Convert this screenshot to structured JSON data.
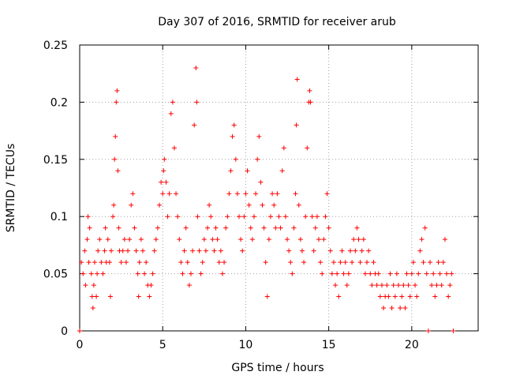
{
  "chart_data": {
    "type": "scatter",
    "title": "Day 307 of 2016, SRMTID for receiver arub",
    "xlabel": "GPS time / hours",
    "ylabel": "SRMTID / TECUs",
    "xlim": [
      0,
      24
    ],
    "ylim": [
      0,
      0.25
    ],
    "x_ticks": [
      0,
      5,
      10,
      15,
      20
    ],
    "y_ticks": [
      0,
      0.05,
      0.1,
      0.15,
      0.2,
      0.25
    ],
    "x_tick_labels": [
      "0",
      "5",
      "10",
      "15",
      "20"
    ],
    "y_tick_labels": [
      "0",
      "0.05",
      "0.1",
      "0.15",
      "0.2",
      "0.25"
    ],
    "grid": true,
    "marker": "+",
    "color": "#ff0000",
    "series": [
      {
        "name": "arub",
        "points": [
          [
            0.0,
            0.0
          ],
          [
            0.1,
            0.06
          ],
          [
            0.2,
            0.05
          ],
          [
            0.3,
            0.07
          ],
          [
            0.35,
            0.04
          ],
          [
            0.45,
            0.08
          ],
          [
            0.5,
            0.1
          ],
          [
            0.55,
            0.06
          ],
          [
            0.6,
            0.09
          ],
          [
            0.7,
            0.05
          ],
          [
            0.75,
            0.03
          ],
          [
            0.8,
            0.02
          ],
          [
            0.85,
            0.04
          ],
          [
            0.9,
            0.06
          ],
          [
            1.0,
            0.03
          ],
          [
            1.05,
            0.05
          ],
          [
            1.1,
            0.07
          ],
          [
            1.2,
            0.08
          ],
          [
            1.3,
            0.06
          ],
          [
            1.4,
            0.05
          ],
          [
            1.5,
            0.07
          ],
          [
            1.55,
            0.09
          ],
          [
            1.6,
            0.06
          ],
          [
            1.7,
            0.08
          ],
          [
            1.8,
            0.06
          ],
          [
            1.85,
            0.03
          ],
          [
            1.9,
            0.07
          ],
          [
            2.0,
            0.1
          ],
          [
            2.05,
            0.11
          ],
          [
            2.1,
            0.15
          ],
          [
            2.15,
            0.17
          ],
          [
            2.2,
            0.2
          ],
          [
            2.25,
            0.21
          ],
          [
            2.3,
            0.14
          ],
          [
            2.35,
            0.09
          ],
          [
            2.4,
            0.07
          ],
          [
            2.5,
            0.06
          ],
          [
            2.6,
            0.07
          ],
          [
            2.7,
            0.08
          ],
          [
            2.8,
            0.06
          ],
          [
            2.9,
            0.07
          ],
          [
            3.0,
            0.08
          ],
          [
            3.1,
            0.11
          ],
          [
            3.2,
            0.12
          ],
          [
            3.3,
            0.09
          ],
          [
            3.4,
            0.07
          ],
          [
            3.5,
            0.05
          ],
          [
            3.55,
            0.03
          ],
          [
            3.6,
            0.06
          ],
          [
            3.7,
            0.08
          ],
          [
            3.8,
            0.07
          ],
          [
            3.9,
            0.05
          ],
          [
            4.0,
            0.06
          ],
          [
            4.1,
            0.04
          ],
          [
            4.2,
            0.03
          ],
          [
            4.3,
            0.04
          ],
          [
            4.4,
            0.05
          ],
          [
            4.5,
            0.07
          ],
          [
            4.6,
            0.08
          ],
          [
            4.7,
            0.09
          ],
          [
            4.8,
            0.11
          ],
          [
            4.9,
            0.13
          ],
          [
            5.0,
            0.12
          ],
          [
            5.05,
            0.14
          ],
          [
            5.1,
            0.15
          ],
          [
            5.2,
            0.13
          ],
          [
            5.3,
            0.1
          ],
          [
            5.4,
            0.12
          ],
          [
            5.5,
            0.19
          ],
          [
            5.6,
            0.2
          ],
          [
            5.7,
            0.16
          ],
          [
            5.8,
            0.12
          ],
          [
            5.9,
            0.1
          ],
          [
            6.0,
            0.08
          ],
          [
            6.1,
            0.06
          ],
          [
            6.2,
            0.05
          ],
          [
            6.3,
            0.07
          ],
          [
            6.4,
            0.09
          ],
          [
            6.5,
            0.06
          ],
          [
            6.6,
            0.04
          ],
          [
            6.7,
            0.05
          ],
          [
            6.8,
            0.07
          ],
          [
            6.9,
            0.18
          ],
          [
            7.0,
            0.23
          ],
          [
            7.05,
            0.2
          ],
          [
            7.1,
            0.1
          ],
          [
            7.2,
            0.07
          ],
          [
            7.3,
            0.05
          ],
          [
            7.4,
            0.06
          ],
          [
            7.5,
            0.08
          ],
          [
            7.6,
            0.07
          ],
          [
            7.7,
            0.09
          ],
          [
            7.8,
            0.11
          ],
          [
            7.9,
            0.1
          ],
          [
            8.0,
            0.08
          ],
          [
            8.1,
            0.07
          ],
          [
            8.2,
            0.09
          ],
          [
            8.3,
            0.08
          ],
          [
            8.4,
            0.06
          ],
          [
            8.5,
            0.07
          ],
          [
            8.6,
            0.05
          ],
          [
            8.7,
            0.06
          ],
          [
            8.8,
            0.09
          ],
          [
            8.9,
            0.1
          ],
          [
            9.0,
            0.12
          ],
          [
            9.1,
            0.14
          ],
          [
            9.2,
            0.17
          ],
          [
            9.3,
            0.18
          ],
          [
            9.4,
            0.15
          ],
          [
            9.5,
            0.12
          ],
          [
            9.6,
            0.1
          ],
          [
            9.7,
            0.08
          ],
          [
            9.8,
            0.07
          ],
          [
            9.9,
            0.1
          ],
          [
            10.0,
            0.12
          ],
          [
            10.1,
            0.14
          ],
          [
            10.2,
            0.11
          ],
          [
            10.3,
            0.09
          ],
          [
            10.4,
            0.08
          ],
          [
            10.5,
            0.1
          ],
          [
            10.6,
            0.12
          ],
          [
            10.7,
            0.15
          ],
          [
            10.8,
            0.17
          ],
          [
            10.9,
            0.13
          ],
          [
            11.0,
            0.11
          ],
          [
            11.1,
            0.09
          ],
          [
            11.2,
            0.06
          ],
          [
            11.3,
            0.03
          ],
          [
            11.4,
            0.08
          ],
          [
            11.5,
            0.1
          ],
          [
            11.6,
            0.12
          ],
          [
            11.7,
            0.11
          ],
          [
            11.8,
            0.09
          ],
          [
            11.9,
            0.12
          ],
          [
            12.0,
            0.1
          ],
          [
            12.1,
            0.09
          ],
          [
            12.2,
            0.14
          ],
          [
            12.3,
            0.16
          ],
          [
            12.4,
            0.1
          ],
          [
            12.5,
            0.08
          ],
          [
            12.6,
            0.07
          ],
          [
            12.7,
            0.06
          ],
          [
            12.8,
            0.05
          ],
          [
            12.9,
            0.09
          ],
          [
            13.0,
            0.12
          ],
          [
            13.05,
            0.18
          ],
          [
            13.1,
            0.22
          ],
          [
            13.2,
            0.11
          ],
          [
            13.3,
            0.08
          ],
          [
            13.4,
            0.07
          ],
          [
            13.5,
            0.06
          ],
          [
            13.6,
            0.1
          ],
          [
            13.7,
            0.16
          ],
          [
            13.8,
            0.2
          ],
          [
            13.85,
            0.21
          ],
          [
            13.9,
            0.2
          ],
          [
            14.0,
            0.1
          ],
          [
            14.1,
            0.07
          ],
          [
            14.2,
            0.09
          ],
          [
            14.3,
            0.1
          ],
          [
            14.4,
            0.08
          ],
          [
            14.5,
            0.06
          ],
          [
            14.6,
            0.05
          ],
          [
            14.7,
            0.08
          ],
          [
            14.8,
            0.1
          ],
          [
            14.9,
            0.12
          ],
          [
            15.0,
            0.09
          ],
          [
            15.1,
            0.07
          ],
          [
            15.2,
            0.05
          ],
          [
            15.3,
            0.06
          ],
          [
            15.4,
            0.04
          ],
          [
            15.5,
            0.05
          ],
          [
            15.6,
            0.03
          ],
          [
            15.7,
            0.06
          ],
          [
            15.8,
            0.07
          ],
          [
            15.9,
            0.05
          ],
          [
            16.0,
            0.06
          ],
          [
            16.1,
            0.04
          ],
          [
            16.2,
            0.05
          ],
          [
            16.3,
            0.07
          ],
          [
            16.4,
            0.06
          ],
          [
            16.5,
            0.08
          ],
          [
            16.6,
            0.07
          ],
          [
            16.7,
            0.09
          ],
          [
            16.8,
            0.08
          ],
          [
            16.9,
            0.06
          ],
          [
            17.0,
            0.07
          ],
          [
            17.1,
            0.08
          ],
          [
            17.2,
            0.05
          ],
          [
            17.3,
            0.06
          ],
          [
            17.4,
            0.07
          ],
          [
            17.5,
            0.05
          ],
          [
            17.6,
            0.04
          ],
          [
            17.7,
            0.06
          ],
          [
            17.8,
            0.05
          ],
          [
            17.9,
            0.04
          ],
          [
            18.0,
            0.05
          ],
          [
            18.1,
            0.03
          ],
          [
            18.2,
            0.04
          ],
          [
            18.3,
            0.02
          ],
          [
            18.4,
            0.03
          ],
          [
            18.5,
            0.04
          ],
          [
            18.6,
            0.03
          ],
          [
            18.7,
            0.05
          ],
          [
            18.8,
            0.02
          ],
          [
            18.9,
            0.04
          ],
          [
            19.0,
            0.03
          ],
          [
            19.1,
            0.05
          ],
          [
            19.2,
            0.04
          ],
          [
            19.3,
            0.02
          ],
          [
            19.4,
            0.03
          ],
          [
            19.5,
            0.04
          ],
          [
            19.6,
            0.02
          ],
          [
            19.7,
            0.05
          ],
          [
            19.8,
            0.04
          ],
          [
            19.9,
            0.03
          ],
          [
            20.0,
            0.05
          ],
          [
            20.1,
            0.06
          ],
          [
            20.2,
            0.04
          ],
          [
            20.3,
            0.03
          ],
          [
            20.4,
            0.05
          ],
          [
            20.5,
            0.07
          ],
          [
            20.6,
            0.08
          ],
          [
            20.7,
            0.06
          ],
          [
            20.8,
            0.09
          ],
          [
            20.9,
            0.05
          ],
          [
            21.0,
            0.0
          ],
          [
            21.1,
            0.06
          ],
          [
            21.2,
            0.04
          ],
          [
            21.3,
            0.05
          ],
          [
            21.4,
            0.03
          ],
          [
            21.5,
            0.04
          ],
          [
            21.6,
            0.06
          ],
          [
            21.7,
            0.05
          ],
          [
            21.8,
            0.04
          ],
          [
            21.9,
            0.06
          ],
          [
            22.0,
            0.08
          ],
          [
            22.1,
            0.05
          ],
          [
            22.2,
            0.03
          ],
          [
            22.3,
            0.04
          ],
          [
            22.4,
            0.05
          ],
          [
            22.5,
            0.0
          ]
        ]
      }
    ]
  }
}
